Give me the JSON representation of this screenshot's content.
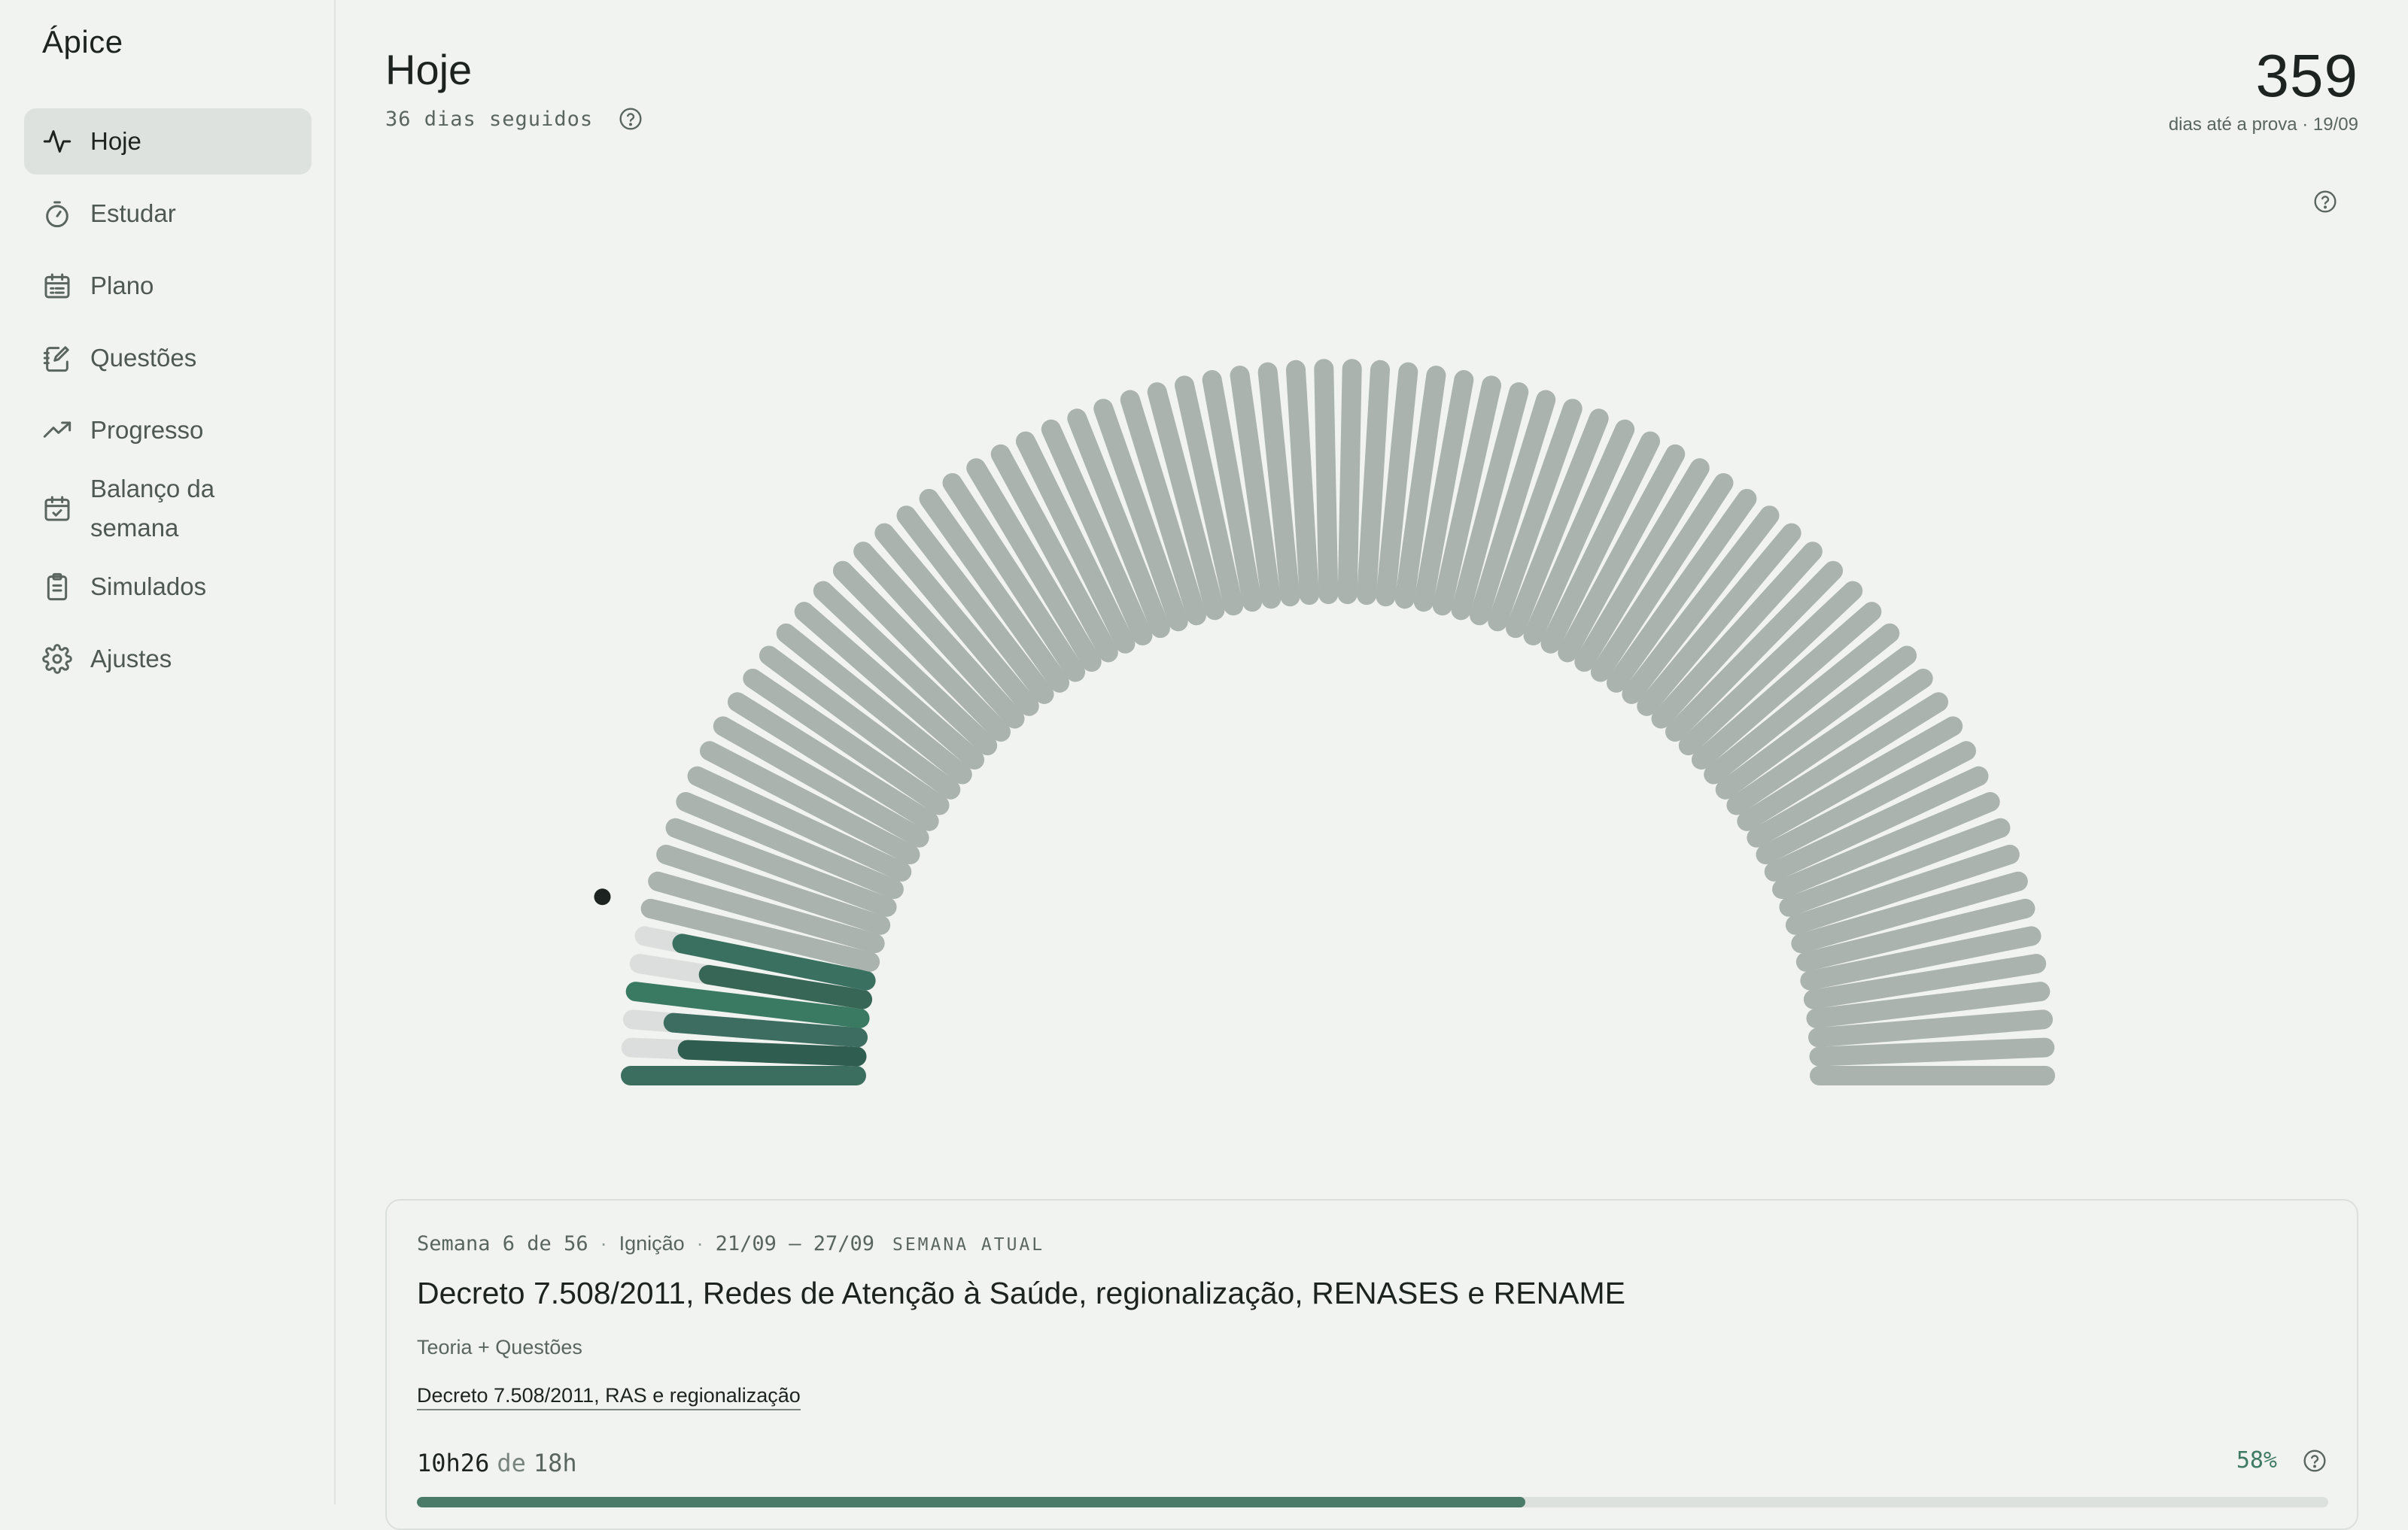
{
  "app": {
    "brand": "Ápice"
  },
  "nav": [
    {
      "label": "Hoje",
      "icon": "activity-icon",
      "active": true
    },
    {
      "label": "Estudar",
      "icon": "stopwatch-icon"
    },
    {
      "label": "Plano",
      "icon": "calendar-list-icon"
    },
    {
      "label": "Questões",
      "icon": "notebook-pen-icon"
    },
    {
      "label": "Progresso",
      "icon": "trending-up-icon"
    },
    {
      "label": "Balanço da semana",
      "icon": "calendar-check-icon"
    },
    {
      "label": "Simulados",
      "icon": "clipboard-list-icon"
    },
    {
      "label": "Ajustes",
      "icon": "gear-icon"
    }
  ],
  "header": {
    "title": "Hoje",
    "streak": "36 dias seguidos",
    "countdown_value": "359",
    "countdown_label": "dias até a prova · 19/09"
  },
  "week_card": {
    "week": "Semana 6 de 56",
    "phase": "Ignição",
    "range": "21/09 – 27/09",
    "tag": "SEMANA ATUAL",
    "title": "Decreto 7.508/2011, Redes de Atenção à Saúde, regionalização, RENASES e RENAME",
    "type": "Teoria + Questões",
    "link": "Decreto 7.508/2011, RAS e regionalização",
    "hours_done": "10h26",
    "hours_of": "de",
    "hours_total": "18h",
    "percent_label": "58%",
    "progress": 0.58
  },
  "colors": {
    "accent": "#3f7a64",
    "future_bar": "#aab3ae",
    "empty_bar": "#dcdedd",
    "done_bars": [
      "#3c6e5f",
      "#2f5d50",
      "#3d6d60",
      "#3a7a62",
      "#376657",
      "#3a7060"
    ]
  },
  "chart_data": {
    "type": "radial-bar",
    "total_days": 56,
    "segments": 80,
    "studied_days_fill": [
      1.0,
      0.75,
      0.82,
      1.0,
      0.69,
      0.83
    ],
    "current_marker": true
  }
}
